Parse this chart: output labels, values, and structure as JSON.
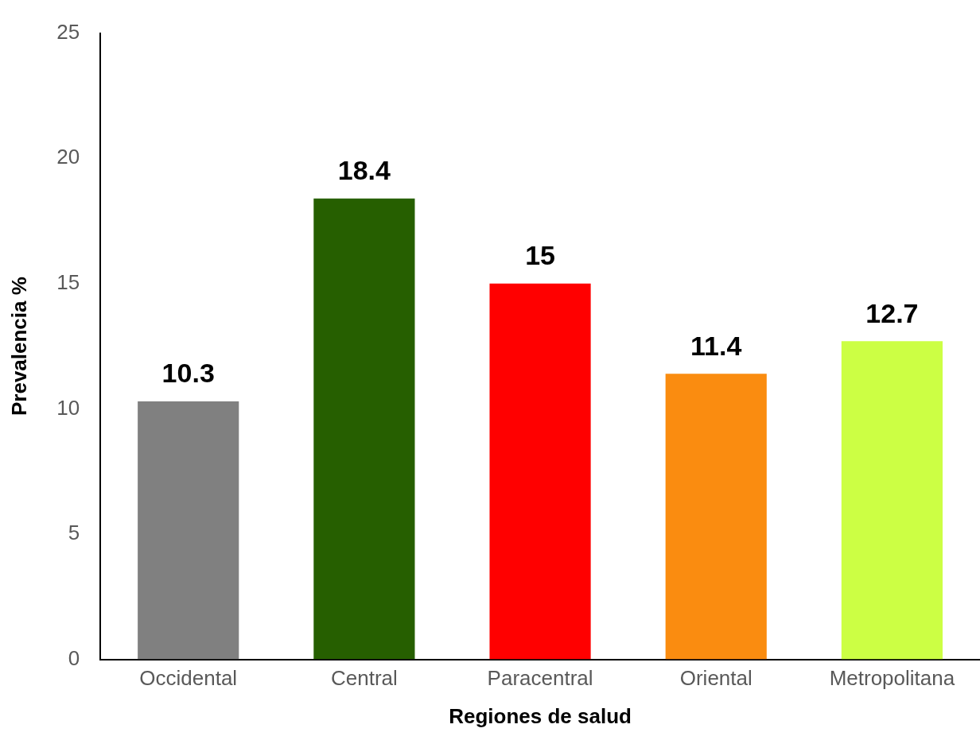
{
  "chart_data": {
    "type": "bar",
    "xlabel": "Regiones de salud",
    "ylabel": "Prevalencia %",
    "categories": [
      "Occidental",
      "Central",
      "Paracentral",
      "Oriental",
      "Metropolitana"
    ],
    "values": [
      10.3,
      18.4,
      15,
      11.4,
      12.7
    ],
    "colors": [
      "#808080",
      "#265f00",
      "#ff0000",
      "#fa8c10",
      "#ccff44"
    ],
    "ylim": [
      0,
      25
    ],
    "yticks": [
      0,
      5,
      10,
      15,
      20,
      25
    ],
    "grid": false,
    "legend": false,
    "data_labels": true
  }
}
